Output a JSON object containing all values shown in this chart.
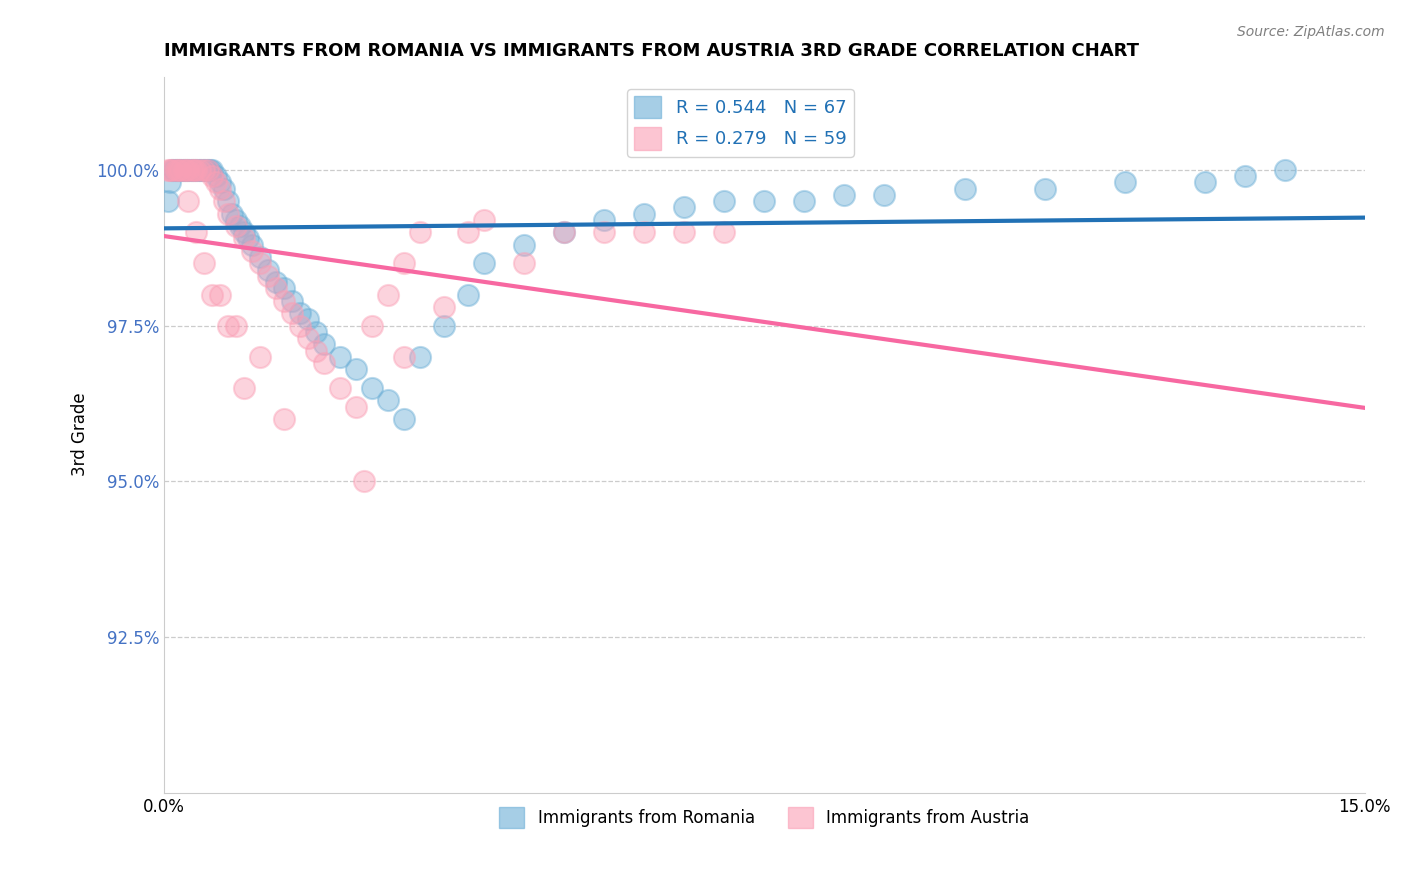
{
  "title": "IMMIGRANTS FROM ROMANIA VS IMMIGRANTS FROM AUSTRIA 3RD GRADE CORRELATION CHART",
  "source": "Source: ZipAtlas.com",
  "ylabel": "3rd Grade",
  "xlim": [
    0.0,
    15.0
  ],
  "ylim": [
    90.0,
    101.5
  ],
  "yticks": [
    92.5,
    95.0,
    97.5,
    100.0
  ],
  "ytick_labels": [
    "92.5%",
    "95.0%",
    "97.5%",
    "100.0%"
  ],
  "romania_color": "#6baed6",
  "austria_color": "#fa9fb5",
  "romania_R": 0.544,
  "romania_N": 67,
  "austria_R": 0.279,
  "austria_N": 59,
  "romania_line_color": "#2171b5",
  "austria_line_color": "#f768a1",
  "romania_x": [
    0.05,
    0.08,
    0.1,
    0.12,
    0.15,
    0.18,
    0.2,
    0.22,
    0.25,
    0.28,
    0.3,
    0.32,
    0.35,
    0.38,
    0.4,
    0.42,
    0.45,
    0.48,
    0.5,
    0.52,
    0.55,
    0.58,
    0.6,
    0.65,
    0.7,
    0.75,
    0.8,
    0.85,
    0.9,
    0.95,
    1.0,
    1.05,
    1.1,
    1.2,
    1.3,
    1.4,
    1.5,
    1.6,
    1.7,
    1.8,
    1.9,
    2.0,
    2.2,
    2.4,
    2.6,
    2.8,
    3.0,
    3.2,
    3.5,
    3.8,
    4.0,
    4.5,
    5.0,
    5.5,
    6.0,
    6.5,
    7.0,
    7.5,
    8.0,
    8.5,
    9.0,
    10.0,
    11.0,
    12.0,
    13.0,
    13.5,
    14.0
  ],
  "romania_y": [
    99.5,
    99.8,
    100.0,
    100.0,
    100.0,
    100.0,
    100.0,
    100.0,
    100.0,
    100.0,
    100.0,
    100.0,
    100.0,
    100.0,
    100.0,
    100.0,
    100.0,
    100.0,
    100.0,
    100.0,
    100.0,
    100.0,
    100.0,
    99.9,
    99.8,
    99.7,
    99.5,
    99.3,
    99.2,
    99.1,
    99.0,
    98.9,
    98.8,
    98.6,
    98.4,
    98.2,
    98.1,
    97.9,
    97.7,
    97.6,
    97.4,
    97.2,
    97.0,
    96.8,
    96.5,
    96.3,
    96.0,
    97.0,
    97.5,
    98.0,
    98.5,
    98.8,
    99.0,
    99.2,
    99.3,
    99.4,
    99.5,
    99.5,
    99.5,
    99.6,
    99.6,
    99.7,
    99.7,
    99.8,
    99.8,
    99.9,
    100.0
  ],
  "austria_x": [
    0.05,
    0.08,
    0.1,
    0.15,
    0.18,
    0.2,
    0.25,
    0.28,
    0.3,
    0.35,
    0.38,
    0.4,
    0.45,
    0.5,
    0.55,
    0.6,
    0.65,
    0.7,
    0.75,
    0.8,
    0.9,
    1.0,
    1.1,
    1.2,
    1.3,
    1.4,
    1.5,
    1.6,
    1.7,
    1.8,
    1.9,
    2.0,
    2.2,
    2.4,
    2.6,
    2.8,
    3.0,
    3.2,
    3.5,
    3.8,
    4.0,
    4.5,
    5.0,
    5.5,
    6.0,
    6.5,
    7.0,
    2.5,
    3.0,
    0.6,
    0.8,
    1.0,
    1.5,
    0.3,
    0.4,
    0.5,
    0.7,
    0.9,
    1.2
  ],
  "austria_y": [
    100.0,
    100.0,
    100.0,
    100.0,
    100.0,
    100.0,
    100.0,
    100.0,
    100.0,
    100.0,
    100.0,
    100.0,
    100.0,
    100.0,
    100.0,
    99.9,
    99.8,
    99.7,
    99.5,
    99.3,
    99.1,
    98.9,
    98.7,
    98.5,
    98.3,
    98.1,
    97.9,
    97.7,
    97.5,
    97.3,
    97.1,
    96.9,
    96.5,
    96.2,
    97.5,
    98.0,
    98.5,
    99.0,
    97.8,
    99.0,
    99.2,
    98.5,
    99.0,
    99.0,
    99.0,
    99.0,
    99.0,
    95.0,
    97.0,
    98.0,
    97.5,
    96.5,
    96.0,
    99.5,
    99.0,
    98.5,
    98.0,
    97.5,
    97.0
  ]
}
